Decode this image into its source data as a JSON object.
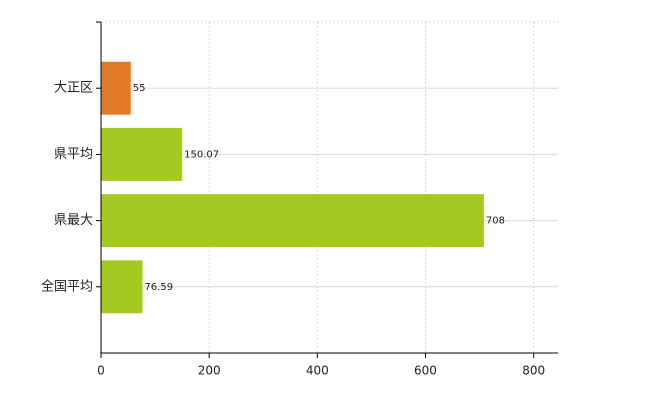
{
  "chart_data": {
    "type": "bar",
    "orientation": "horizontal",
    "categories": [
      "大正区",
      "県平均",
      "県最大",
      "全国平均"
    ],
    "values": [
      55,
      150.07,
      708,
      76.59
    ],
    "colors": [
      "#e07b27",
      "#a6c922",
      "#a6c922",
      "#a6c922"
    ],
    "xlim": [
      0,
      845
    ],
    "xticks": [
      0,
      200,
      400,
      600,
      800
    ],
    "grid": true
  }
}
